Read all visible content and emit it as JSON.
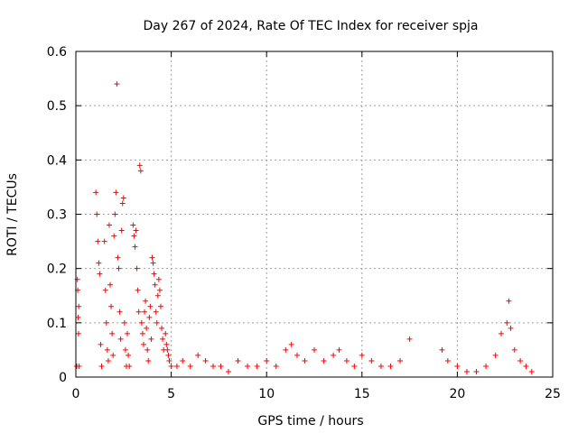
{
  "chart_data": {
    "type": "scatter",
    "title": "Day 267 of 2024, Rate Of TEC Index for receiver spja",
    "xlabel": "GPS time / hours",
    "ylabel": "ROTI / TECUs",
    "xlim": [
      0,
      25
    ],
    "ylim": [
      0,
      0.6
    ],
    "x_ticks": [
      "0",
      "5",
      "10",
      "15",
      "20",
      "25"
    ],
    "y_ticks": [
      "0",
      "0.1",
      "0.2",
      "0.3",
      "0.4",
      "0.5",
      "0.6"
    ],
    "x_tick_values": [
      0,
      5,
      10,
      15,
      20,
      25
    ],
    "y_tick_values": [
      0,
      0.1,
      0.2,
      0.3,
      0.4,
      0.5,
      0.6
    ],
    "grid": true,
    "marker": "+",
    "color": "#ff0000",
    "series": [
      {
        "name": "ROTI",
        "points": [
          [
            0.05,
            0.02
          ],
          [
            0.08,
            0.18
          ],
          [
            0.1,
            0.16
          ],
          [
            0.12,
            0.11
          ],
          [
            0.14,
            0.08
          ],
          [
            0.15,
            0.13
          ],
          [
            0.17,
            0.02
          ],
          [
            1.05,
            0.34
          ],
          [
            1.1,
            0.3
          ],
          [
            1.15,
            0.25
          ],
          [
            1.2,
            0.21
          ],
          [
            1.25,
            0.19
          ],
          [
            1.3,
            0.06
          ],
          [
            1.35,
            0.02
          ],
          [
            1.5,
            0.25
          ],
          [
            1.55,
            0.16
          ],
          [
            1.6,
            0.1
          ],
          [
            1.65,
            0.05
          ],
          [
            1.7,
            0.03
          ],
          [
            1.75,
            0.28
          ],
          [
            1.8,
            0.17
          ],
          [
            1.85,
            0.13
          ],
          [
            1.9,
            0.08
          ],
          [
            1.95,
            0.04
          ],
          [
            2.0,
            0.26
          ],
          [
            2.05,
            0.3
          ],
          [
            2.1,
            0.34
          ],
          [
            2.15,
            0.54
          ],
          [
            2.2,
            0.22
          ],
          [
            2.25,
            0.2
          ],
          [
            2.3,
            0.12
          ],
          [
            2.35,
            0.07
          ],
          [
            2.4,
            0.27
          ],
          [
            2.45,
            0.32
          ],
          [
            2.5,
            0.33
          ],
          [
            2.55,
            0.1
          ],
          [
            2.6,
            0.05
          ],
          [
            2.65,
            0.02
          ],
          [
            2.7,
            0.08
          ],
          [
            2.75,
            0.04
          ],
          [
            2.8,
            0.02
          ],
          [
            3.0,
            0.28
          ],
          [
            3.05,
            0.26
          ],
          [
            3.1,
            0.24
          ],
          [
            3.15,
            0.27
          ],
          [
            3.2,
            0.2
          ],
          [
            3.25,
            0.16
          ],
          [
            3.3,
            0.12
          ],
          [
            3.35,
            0.39
          ],
          [
            3.4,
            0.38
          ],
          [
            3.45,
            0.1
          ],
          [
            3.5,
            0.08
          ],
          [
            3.55,
            0.06
          ],
          [
            3.6,
            0.12
          ],
          [
            3.65,
            0.14
          ],
          [
            3.7,
            0.09
          ],
          [
            3.75,
            0.05
          ],
          [
            3.8,
            0.03
          ],
          [
            3.85,
            0.11
          ],
          [
            3.9,
            0.13
          ],
          [
            3.95,
            0.07
          ],
          [
            4.0,
            0.22
          ],
          [
            4.05,
            0.21
          ],
          [
            4.1,
            0.19
          ],
          [
            4.15,
            0.17
          ],
          [
            4.2,
            0.12
          ],
          [
            4.25,
            0.1
          ],
          [
            4.3,
            0.15
          ],
          [
            4.35,
            0.18
          ],
          [
            4.4,
            0.16
          ],
          [
            4.45,
            0.13
          ],
          [
            4.5,
            0.09
          ],
          [
            4.55,
            0.07
          ],
          [
            4.6,
            0.05
          ],
          [
            4.7,
            0.08
          ],
          [
            4.75,
            0.06
          ],
          [
            4.8,
            0.05
          ],
          [
            4.85,
            0.04
          ],
          [
            4.9,
            0.03
          ],
          [
            5.0,
            0.02
          ],
          [
            5.3,
            0.02
          ],
          [
            5.6,
            0.03
          ],
          [
            6.0,
            0.02
          ],
          [
            6.4,
            0.04
          ],
          [
            6.8,
            0.03
          ],
          [
            7.2,
            0.02
          ],
          [
            7.6,
            0.02
          ],
          [
            8.0,
            0.01
          ],
          [
            8.5,
            0.03
          ],
          [
            9.0,
            0.02
          ],
          [
            9.5,
            0.02
          ],
          [
            10.0,
            0.03
          ],
          [
            10.5,
            0.02
          ],
          [
            11.0,
            0.05
          ],
          [
            11.3,
            0.06
          ],
          [
            11.6,
            0.04
          ],
          [
            12.0,
            0.03
          ],
          [
            12.5,
            0.05
          ],
          [
            13.0,
            0.03
          ],
          [
            13.5,
            0.04
          ],
          [
            13.8,
            0.05
          ],
          [
            14.2,
            0.03
          ],
          [
            14.6,
            0.02
          ],
          [
            15.0,
            0.04
          ],
          [
            15.5,
            0.03
          ],
          [
            16.0,
            0.02
          ],
          [
            16.5,
            0.02
          ],
          [
            17.0,
            0.03
          ],
          [
            17.5,
            0.07
          ],
          [
            19.2,
            0.05
          ],
          [
            19.5,
            0.03
          ],
          [
            20.0,
            0.02
          ],
          [
            20.5,
            0.01
          ],
          [
            21.0,
            0.01
          ],
          [
            21.5,
            0.02
          ],
          [
            22.0,
            0.04
          ],
          [
            22.3,
            0.08
          ],
          [
            22.6,
            0.1
          ],
          [
            22.7,
            0.14
          ],
          [
            22.8,
            0.09
          ],
          [
            23.0,
            0.05
          ],
          [
            23.3,
            0.03
          ],
          [
            23.6,
            0.02
          ],
          [
            23.9,
            0.01
          ]
        ]
      }
    ]
  }
}
